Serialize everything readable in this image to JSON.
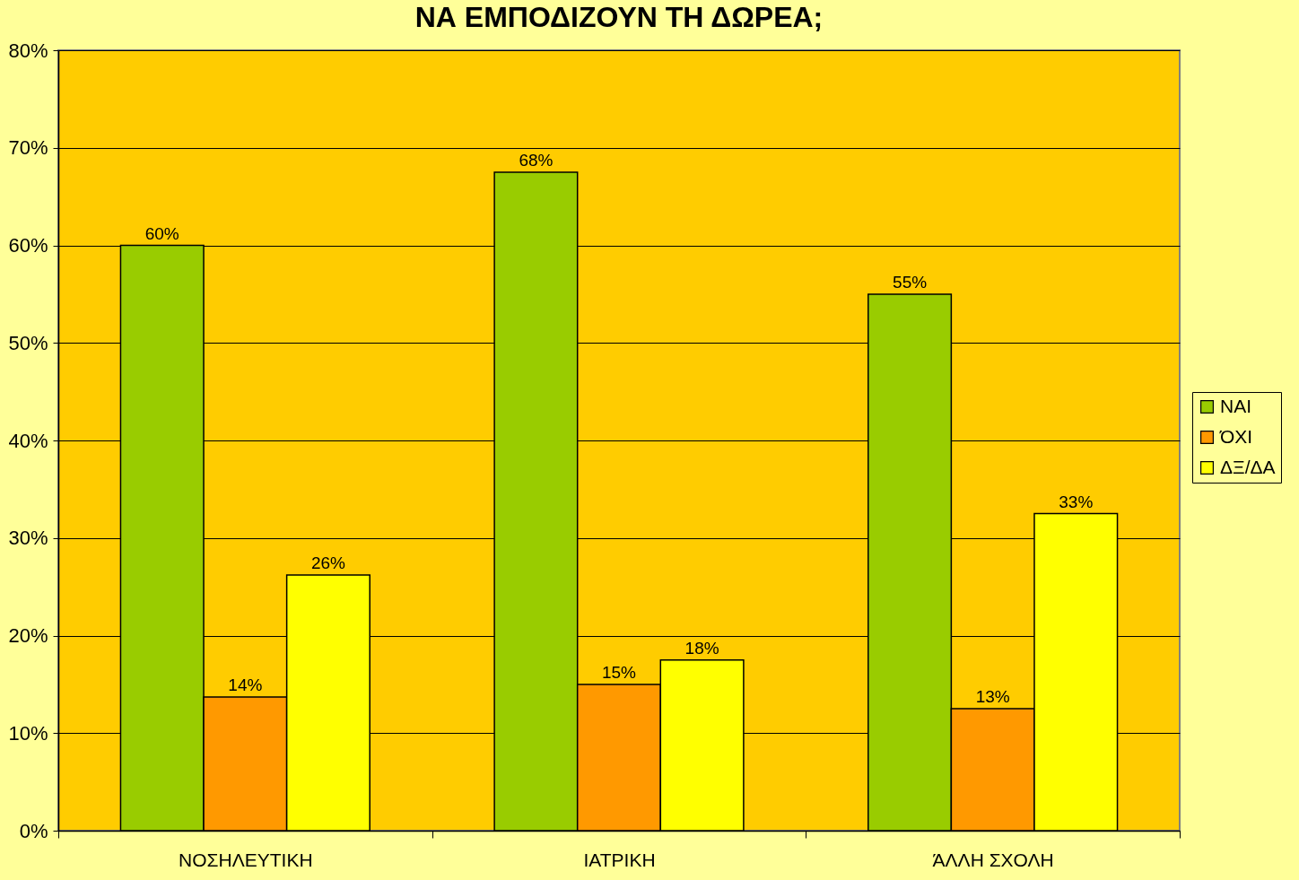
{
  "chart_data": {
    "type": "bar",
    "title": "ΝΑ ΕΜΠΟΔΙΖΟΥΝ ΤΗ ΔΩΡΕΑ;",
    "categories": [
      "ΝΟΣΗΛΕΥΤΙΚΗ",
      "ΙΑΤΡΙΚΗ",
      "ΆΛΛΗ ΣΧΟΛΗ"
    ],
    "series": [
      {
        "name": "ΝΑΙ",
        "color": "#99cc00",
        "values": [
          60,
          67.5,
          55
        ],
        "value_labels": [
          "60%",
          "68%",
          "55%"
        ]
      },
      {
        "name": "ΌΧΙ",
        "color": "#ff9900",
        "values": [
          13.7,
          15,
          12.5
        ],
        "value_labels": [
          "14%",
          "15%",
          "13%"
        ]
      },
      {
        "name": "ΔΞ/ΔΑ",
        "color": "#ffff00",
        "values": [
          26.2,
          17.5,
          32.5
        ],
        "value_labels": [
          "26%",
          "18%",
          "33%"
        ]
      }
    ],
    "ylim": [
      0,
      80
    ],
    "yticks": [
      {
        "value": 0,
        "label": "0%"
      },
      {
        "value": 10,
        "label": "10%"
      },
      {
        "value": 20,
        "label": "20%"
      },
      {
        "value": 30,
        "label": "30%"
      },
      {
        "value": 40,
        "label": "40%"
      },
      {
        "value": 50,
        "label": "50%"
      },
      {
        "value": 60,
        "label": "60%"
      },
      {
        "value": 70,
        "label": "70%"
      },
      {
        "value": 80,
        "label": "80%"
      }
    ],
    "grid": "y",
    "legend": "right"
  }
}
